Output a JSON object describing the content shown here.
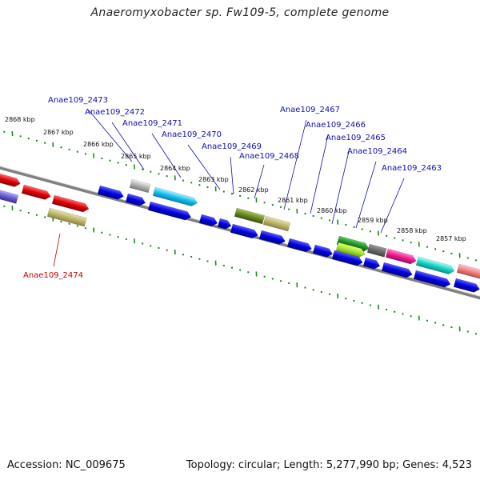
{
  "title": "Anaeromyxobacter sp. Fw109-5, complete genome",
  "footer": {
    "accession": "Accession: NC_009675",
    "summary": "Topology: circular; Length: 5,277,990 bp; Genes: 4,523"
  },
  "kbp_labels": [
    "2868 kbp",
    "2867 kbp",
    "2866 kbp",
    "2865 kbp",
    "2864 kbp",
    "2863 kbp",
    "2862 kbp",
    "2861 kbp",
    "2860 kbp",
    "2859 kbp",
    "2858 kbp",
    "2857 kbp"
  ],
  "gene_labels": [
    "Anae109_2473",
    "Anae109_2472",
    "Anae109_2471",
    "Anae109_2470",
    "Anae109_2469",
    "Anae109_2468",
    "Anae109_2467",
    "Anae109_2466",
    "Anae109_2465",
    "Anae109_2464",
    "Anae109_2463",
    "Anae109_2474"
  ],
  "colors": {
    "backbone": "#808080",
    "ticks": "#1a8a1a",
    "label_blue": "#1010b0",
    "label_red": "#c80000"
  }
}
